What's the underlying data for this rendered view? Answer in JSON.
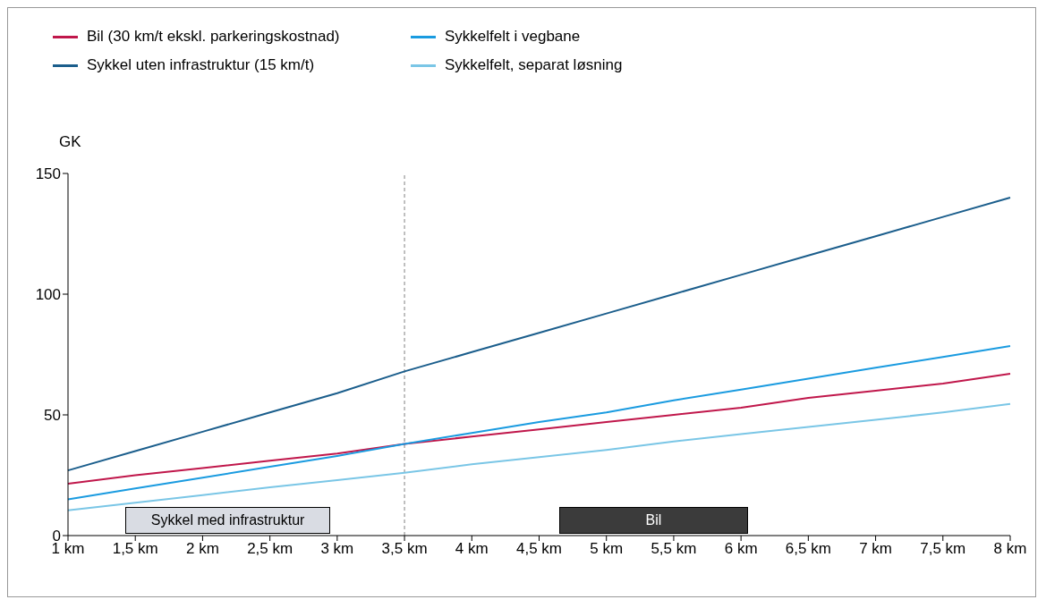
{
  "chart_data": {
    "type": "line",
    "ylabel": "GK",
    "categories": [
      "1 km",
      "1,5 km",
      "2 km",
      "2,5 km",
      "3 km",
      "3,5 km",
      "4 km",
      "4,5 km",
      "5 km",
      "5,5 km",
      "6 km",
      "6,5 km",
      "7 km",
      "7,5 km",
      "8 km"
    ],
    "series": [
      {
        "name": "Bil (30 km/t ekskl. parkeringskostnad)",
        "color": "#c0174b",
        "values": [
          21.5,
          25,
          28,
          31,
          34,
          38,
          41,
          44,
          47,
          50,
          53,
          57,
          60,
          63,
          67
        ]
      },
      {
        "name": "Sykkel uten infrastruktur (15 km/t)",
        "color": "#1b5e8c",
        "values": [
          27,
          35,
          43,
          51,
          59,
          68,
          76,
          84,
          92,
          100,
          108,
          116,
          124,
          132,
          140
        ]
      },
      {
        "name": "Sykkelfelt i vegbane",
        "color": "#1a9be0",
        "values": [
          15,
          19.5,
          24,
          28.5,
          33,
          38,
          42.5,
          47,
          51,
          56,
          60.5,
          65,
          69.5,
          74,
          78.5
        ]
      },
      {
        "name": "Sykkelfelt, separat løsning",
        "color": "#7ac6e6",
        "values": [
          10.5,
          13.6,
          16.8,
          20,
          23,
          26,
          29.5,
          32.5,
          35.5,
          39,
          42,
          45,
          48,
          51,
          54.5
        ]
      }
    ],
    "ylim": [
      0,
      150
    ],
    "yticks": [
      0,
      50,
      100,
      150
    ],
    "grid": false,
    "legend": "top left",
    "marker": "none",
    "line_style": "solid",
    "ref_lines": [
      {
        "axis": "x",
        "value": "3,5 km",
        "color": "#808080",
        "line_style": "dashed"
      }
    ],
    "annotations": [
      "Sykkel med infrastruktur",
      "Bil"
    ]
  }
}
